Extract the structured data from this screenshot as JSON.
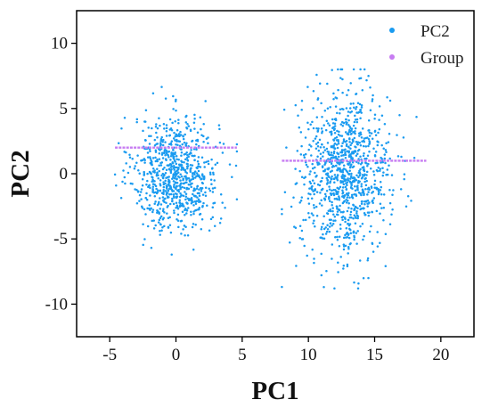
{
  "chart_data": {
    "type": "scatter",
    "xlabel": "PC1",
    "ylabel": "PC2",
    "xlim": [
      -7.5,
      22.5
    ],
    "ylim": [
      -12.5,
      12.5
    ],
    "xticks": [
      -5,
      0,
      5,
      10,
      15,
      20
    ],
    "yticks": [
      -10,
      -5,
      0,
      5,
      10
    ],
    "grid": false,
    "legend_position": "top-right",
    "series": [
      {
        "name": "PC2",
        "color": "#1a9bf0",
        "clusters": [
          {
            "center_x": 0,
            "center_y": 0,
            "spread_x": 1.6,
            "spread_y": 2.2,
            "x_range": [
              -4.6,
              4.6
            ],
            "y_range": [
              -6.2,
              8.0
            ],
            "count": 800
          },
          {
            "center_x": 12.8,
            "center_y": 0,
            "spread_x": 1.7,
            "spread_y": 3.1,
            "x_range": [
              8.0,
              18.9
            ],
            "y_range": [
              -8.8,
              8.0
            ],
            "count": 1000
          }
        ]
      },
      {
        "name": "Group",
        "color": "#c77cf2",
        "segments": [
          {
            "x": [
              -4.6,
              4.6
            ],
            "y": 2.0
          },
          {
            "x": [
              8.0,
              18.9
            ],
            "y": 1.0
          }
        ]
      }
    ]
  }
}
